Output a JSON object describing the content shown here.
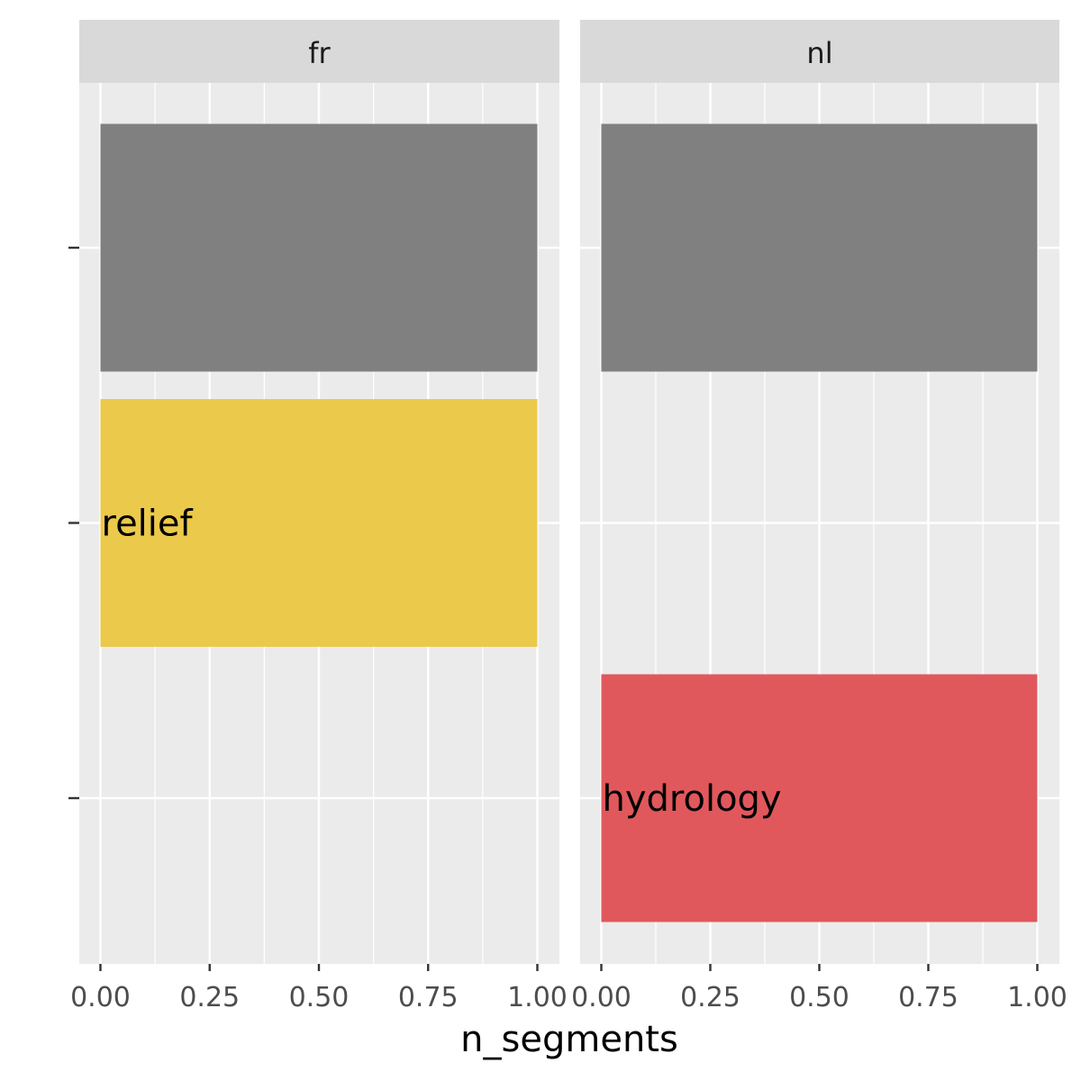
{
  "chart_data": {
    "type": "bar",
    "orientation": "horizontal",
    "xlabel": "n_segments",
    "ylabel": "",
    "xlim": [
      0,
      1
    ],
    "x_ticks": [
      "0.00",
      "0.25",
      "0.50",
      "0.75",
      "1.00"
    ],
    "rows": 3,
    "grid": true,
    "facets": [
      {
        "name": "fr",
        "bars": [
          {
            "row": 0,
            "value": 1.0,
            "label": "",
            "color": "#808080"
          },
          {
            "row": 1,
            "value": 1.0,
            "label": "relief",
            "color": "#EBC94A"
          }
        ]
      },
      {
        "name": "nl",
        "bars": [
          {
            "row": 0,
            "value": 1.0,
            "label": "",
            "color": "#808080"
          },
          {
            "row": 2,
            "value": 1.0,
            "label": "hydrology",
            "color": "#E0585C"
          }
        ]
      }
    ]
  },
  "colors": {
    "panel_bg": "#EBEBEB",
    "strip_bg": "#D9D9D9",
    "grid": "#FFFFFF",
    "text": "#1A1A1A",
    "tick_text": "#4D4D4D"
  }
}
